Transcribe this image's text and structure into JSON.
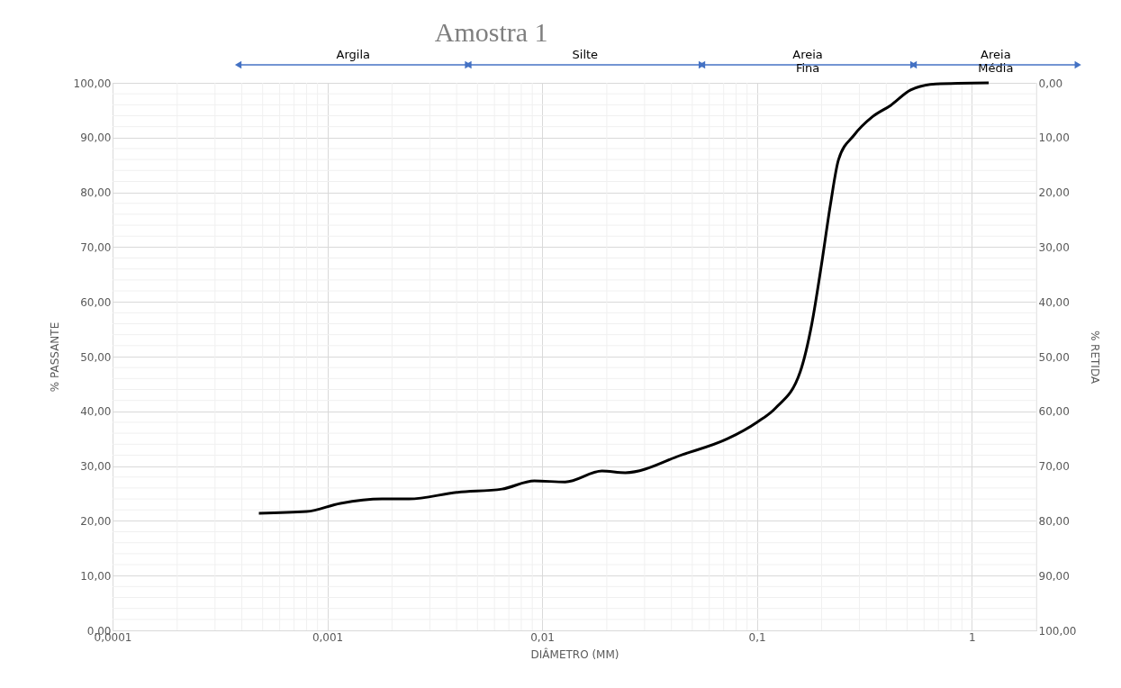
{
  "chart_data": {
    "type": "line",
    "title": "Amostra 1",
    "xlabel": "DIÂMETRO (MM)",
    "ylabel": "% PASSANTE",
    "y2label": "% RETIDA",
    "x": [
      0.00048,
      0.0008,
      0.00115,
      0.0018,
      0.0024,
      0.004,
      0.0065,
      0.0092,
      0.0128,
      0.019,
      0.0244,
      0.045,
      0.073,
      0.1,
      0.122,
      0.159,
      0.18,
      0.2,
      0.22,
      0.24,
      0.284,
      0.345,
      0.42,
      0.52,
      0.68,
      1.2
    ],
    "series": [
      {
        "color": "#000000",
        "values": [
          21.4,
          21.7,
          23.2,
          24.0,
          24.0,
          25.2,
          25.8,
          27.3,
          27.1,
          29.1,
          28.8,
          32.1,
          35.0,
          38.0,
          40.6,
          47.2,
          55.9,
          66.9,
          77.8,
          86.0,
          90.5,
          93.8,
          95.9,
          98.7,
          99.8,
          100.0
        ]
      }
    ],
    "log": "x",
    "grid": true,
    "marker": "none",
    "line_style": "solid",
    "legend": false,
    "xlim": [
      0.0001,
      2
    ],
    "xticks": [
      {
        "value": 0.0001,
        "label": "0,0001"
      },
      {
        "value": 0.001,
        "label": "0,001"
      },
      {
        "value": 0.01,
        "label": "0,01"
      },
      {
        "value": 0.1,
        "label": "0,1"
      },
      {
        "value": 1,
        "label": "1"
      }
    ],
    "ylim": [
      0,
      100
    ],
    "yticks": [
      {
        "value": 0,
        "label": "0,00"
      },
      {
        "value": 10,
        "label": "10,00"
      },
      {
        "value": 20,
        "label": "20,00"
      },
      {
        "value": 30,
        "label": "30,00"
      },
      {
        "value": 40,
        "label": "40,00"
      },
      {
        "value": 50,
        "label": "50,00"
      },
      {
        "value": 60,
        "label": "60,00"
      },
      {
        "value": 70,
        "label": "70,00"
      },
      {
        "value": 80,
        "label": "80,00"
      },
      {
        "value": 90,
        "label": "90,00"
      },
      {
        "value": 100,
        "label": "100,00"
      }
    ],
    "y2lim": [
      100,
      0
    ],
    "y2ticks": [
      {
        "value": 100,
        "label": "100,00"
      },
      {
        "value": 90,
        "label": "90,00"
      },
      {
        "value": 80,
        "label": "80,00"
      },
      {
        "value": 70,
        "label": "70,00"
      },
      {
        "value": 60,
        "label": "60,00"
      },
      {
        "value": 50,
        "label": "50,00"
      },
      {
        "value": 40,
        "label": "40,00"
      },
      {
        "value": 30,
        "label": "30,00"
      },
      {
        "value": 20,
        "label": "20,00"
      },
      {
        "value": 10,
        "label": "10,00"
      },
      {
        "value": 0,
        "label": "0,00"
      }
    ],
    "annotations": [
      "Argila",
      "Silte",
      "Areia\nFina",
      "Areia\nMédia"
    ]
  }
}
